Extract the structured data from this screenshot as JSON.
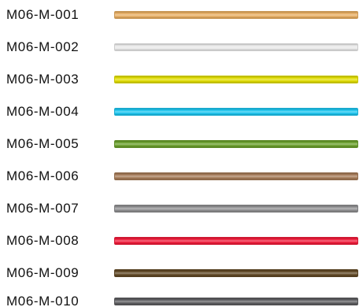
{
  "swatches": [
    {
      "code": "M06-M-001",
      "color": "#e6ad62"
    },
    {
      "code": "M06-M-002",
      "color": "#e8e8e8"
    },
    {
      "code": "M06-M-003",
      "color": "#e0dc00"
    },
    {
      "code": "M06-M-004",
      "color": "#1cc4ee"
    },
    {
      "code": "M06-M-005",
      "color": "#6a9f2c"
    },
    {
      "code": "M06-M-006",
      "color": "#a57b58"
    },
    {
      "code": "M06-M-007",
      "color": "#8e8e90"
    },
    {
      "code": "M06-M-008",
      "color": "#ef1b3a"
    },
    {
      "code": "M06-M-009",
      "color": "#614926"
    },
    {
      "code": "M06-M-010",
      "color": "#5d5d60"
    }
  ]
}
